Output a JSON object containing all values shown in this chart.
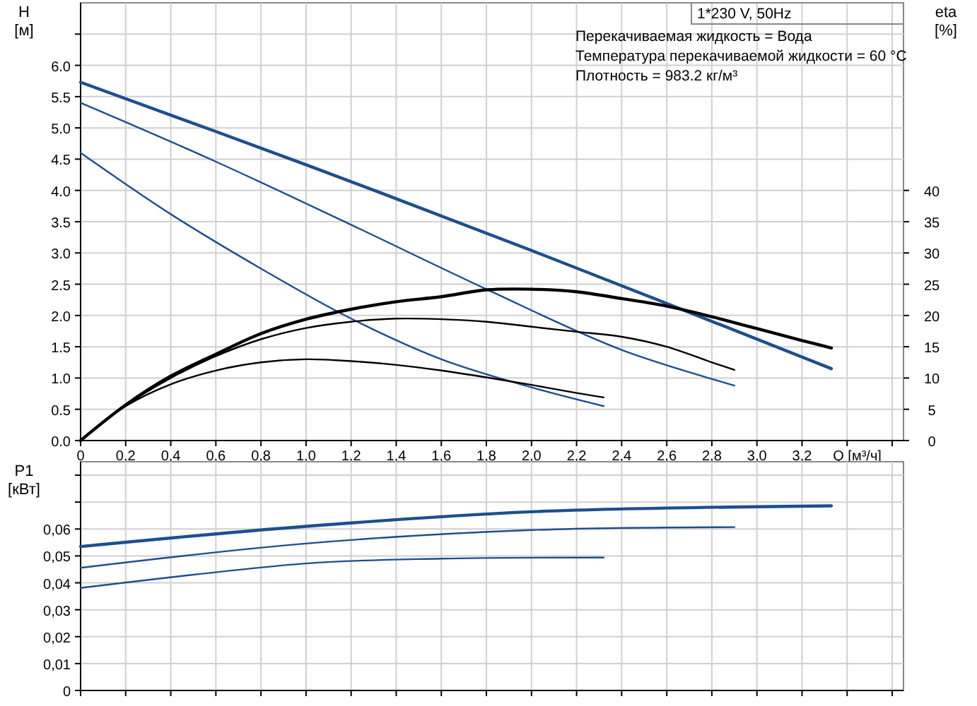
{
  "chart_data": [
    {
      "type": "line",
      "title": "1*230 V, 50Hz",
      "annotations": [
        "Перекачиваемая жидкость = Вода",
        "Температура перекачиваемой жидкости = 60 °C",
        "Плотность = 983.2 кг/м³"
      ],
      "xlabel": "Q [м³/ч]",
      "ylabel": "H [м]",
      "y2label": "eta [%]",
      "grid": true,
      "xlim": [
        0,
        3.65
      ],
      "xticks": [
        0,
        {
          "value": 0.2,
          "label": "0,2"
        },
        {
          "value": 0.4,
          "label": "0,4"
        },
        {
          "value": 0.6,
          "label": "0,6"
        },
        {
          "value": 0.8,
          "label": "0,8"
        },
        {
          "value": 1,
          "label": "1,0"
        },
        {
          "value": 1.2,
          "label": "1,2"
        },
        {
          "value": 1.4,
          "label": "1,4"
        },
        {
          "value": 1.6,
          "label": "1,6"
        },
        {
          "value": 1.8,
          "label": "1,8"
        },
        {
          "value": 2,
          "label": "2,0"
        },
        {
          "value": 2.2,
          "label": "2,2"
        },
        {
          "value": 2.4,
          "label": "2,4"
        },
        {
          "value": 2.6,
          "label": "2,6"
        },
        {
          "value": 2.8,
          "label": "2,8"
        },
        {
          "value": 3,
          "label": "3,0"
        },
        {
          "value": 3.2,
          "label": "3,2"
        },
        {
          "value": 3.4,
          "label": null
        },
        {
          "value": 3.6,
          "label": null
        }
      ],
      "ylim": [
        0,
        7
      ],
      "yticks": [
        {
          "value": 0,
          "label": "0.0"
        },
        0.5,
        {
          "value": 1,
          "label": "1.0"
        },
        1.5,
        {
          "value": 2,
          "label": "2.0"
        },
        2.5,
        {
          "value": 3,
          "label": "3.0"
        },
        3.5,
        {
          "value": 4,
          "label": "4.0"
        },
        4.5,
        {
          "value": 5,
          "label": "5.0"
        },
        5.5,
        {
          "value": 6,
          "label": "6.0"
        },
        {
          "value": 6.5,
          "label": null
        }
      ],
      "y2lim": [
        0,
        70
      ],
      "y2ticks": [
        0,
        5,
        10,
        15,
        20,
        25,
        30,
        35,
        40
      ],
      "series": [
        {
          "color": "#1d4f8f",
          "x": [
            0,
            1,
            2,
            3.33
          ],
          "values": [
            5.73,
            4.41,
            3.04,
            1.15
          ]
        },
        {
          "color": "#1d4f8f",
          "x": [
            0,
            0.6,
            1.2,
            1.8,
            2.4,
            2.9
          ],
          "values": [
            5.4,
            4.46,
            3.45,
            2.42,
            1.45,
            0.88
          ]
        },
        {
          "color": "#1d4f8f",
          "x": [
            0,
            0.4,
            0.8,
            1.2,
            1.6,
            2,
            2.32
          ],
          "values": [
            4.6,
            3.62,
            2.75,
            1.95,
            1.3,
            0.85,
            0.55
          ]
        },
        {
          "color": "#000000",
          "axis": "y2",
          "x": [
            0,
            0.2,
            0.4,
            0.6,
            0.8,
            1,
            1.2,
            1.4,
            1.6,
            1.8,
            2,
            2.2,
            2.4,
            2.6,
            2.8,
            3,
            3.2,
            3.33
          ],
          "values": [
            0,
            5.7,
            10.3,
            13.8,
            17.1,
            19.4,
            21,
            22.2,
            23,
            24.1,
            24.2,
            23.8,
            22.7,
            21.5,
            19.8,
            17.9,
            16,
            14.8
          ]
        },
        {
          "color": "#000000",
          "axis": "y2",
          "x": [
            0,
            0.2,
            0.4,
            0.6,
            0.8,
            1,
            1.2,
            1.4,
            1.6,
            1.8,
            2,
            2.2,
            2.4,
            2.6,
            2.8,
            2.9
          ],
          "values": [
            0,
            5.6,
            10,
            13.5,
            16.2,
            18,
            19,
            19.5,
            19.4,
            19,
            18.2,
            17.4,
            16.6,
            15,
            12.5,
            11.3
          ]
        },
        {
          "color": "#000000",
          "axis": "y2",
          "x": [
            0,
            0.2,
            0.4,
            0.6,
            0.8,
            1,
            1.2,
            1.4,
            1.6,
            1.8,
            2,
            2.2,
            2.32
          ],
          "values": [
            0,
            5.5,
            9,
            11.2,
            12.5,
            13,
            12.7,
            12.1,
            11.2,
            10.1,
            8.9,
            7.6,
            6.9
          ]
        }
      ]
    },
    {
      "type": "line",
      "ylabel": "P1 [кВт]",
      "grid": true,
      "tick_labels": "y",
      "xlim": [
        0,
        3.65
      ],
      "xticks": [
        0,
        0.2,
        0.4,
        0.6,
        0.8,
        1,
        1.2,
        1.4,
        1.6,
        1.8,
        2,
        2.2,
        2.4,
        2.6,
        2.8,
        3,
        3.2,
        3.4,
        3.6
      ],
      "ylim": [
        0,
        0.085
      ],
      "yticks": [
        0,
        {
          "value": 0.01,
          "label": "0,01"
        },
        {
          "value": 0.02,
          "label": "0,02"
        },
        {
          "value": 0.03,
          "label": "0,03"
        },
        {
          "value": 0.04,
          "label": "0,04"
        },
        {
          "value": 0.05,
          "label": "0,05"
        },
        {
          "value": 0.06,
          "label": "0,06"
        },
        {
          "value": 0.07,
          "label": null
        },
        {
          "value": 0.08,
          "label": null
        }
      ],
      "series": [
        {
          "color": "#1d4f8f",
          "x": [
            0,
            1,
            2,
            3.33
          ],
          "values": [
            0.0535,
            0.061,
            0.0664,
            0.0686
          ]
        },
        {
          "color": "#1d4f8f",
          "x": [
            0,
            1,
            2,
            2.9
          ],
          "values": [
            0.0456,
            0.0546,
            0.0596,
            0.0607
          ]
        },
        {
          "color": "#1d4f8f",
          "x": [
            0,
            1,
            1.6,
            2.32
          ],
          "values": [
            0.0381,
            0.0472,
            0.049,
            0.0494
          ]
        }
      ]
    }
  ]
}
